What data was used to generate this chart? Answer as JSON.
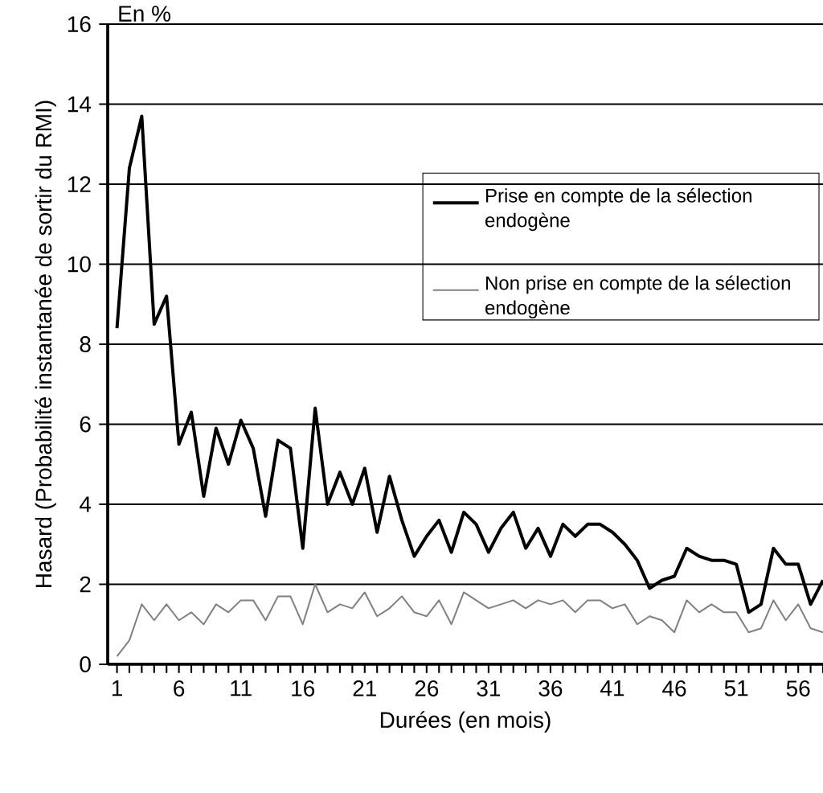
{
  "chart_data": {
    "type": "line",
    "xlabel": "Durées  (en mois)",
    "ylabel": "Hasard  (Probabilité  instantanée  de  sortir  du  RMI)",
    "annotations": [
      "En %"
    ],
    "categories": [
      "1",
      null,
      null,
      null,
      null,
      "6",
      null,
      null,
      null,
      null,
      "11",
      null,
      null,
      null,
      null,
      "16",
      null,
      null,
      null,
      null,
      "21",
      null,
      null,
      null,
      null,
      "26",
      null,
      null,
      null,
      null,
      "31",
      null,
      null,
      null,
      null,
      "36",
      null,
      null,
      null,
      null,
      "41",
      null,
      null,
      null,
      null,
      "46",
      null,
      null,
      null,
      null,
      "51",
      null,
      null,
      null,
      null,
      "56",
      null,
      null
    ],
    "series": [
      {
        "name": "Prise en compte de la sélection endogène",
        "color": "#000000",
        "values": [
          8.4,
          12.4,
          13.7,
          8.5,
          9.2,
          5.5,
          6.3,
          4.2,
          5.9,
          5.0,
          6.1,
          5.4,
          3.7,
          5.6,
          5.4,
          2.9,
          6.4,
          4.0,
          4.8,
          4.0,
          4.9,
          3.3,
          4.7,
          3.6,
          2.7,
          3.2,
          3.6,
          2.8,
          3.8,
          3.5,
          2.8,
          3.4,
          3.8,
          2.9,
          3.4,
          2.7,
          3.5,
          3.2,
          3.5,
          3.5,
          3.3,
          3.0,
          2.6,
          1.9,
          2.1,
          2.2,
          2.9,
          2.7,
          2.6,
          2.6,
          2.5,
          1.3,
          1.5,
          2.9,
          2.5,
          2.5,
          1.5,
          2.1
        ]
      },
      {
        "name": "Non prise en compte de la sélection endogène",
        "color": "#808080",
        "values": [
          0.2,
          0.6,
          1.5,
          1.1,
          1.5,
          1.1,
          1.3,
          1.0,
          1.5,
          1.3,
          1.6,
          1.6,
          1.1,
          1.7,
          1.7,
          1.0,
          2.0,
          1.3,
          1.5,
          1.4,
          1.8,
          1.2,
          1.4,
          1.7,
          1.3,
          1.2,
          1.6,
          1.0,
          1.8,
          1.6,
          1.4,
          1.5,
          1.6,
          1.4,
          1.6,
          1.5,
          1.6,
          1.3,
          1.6,
          1.6,
          1.4,
          1.5,
          1.0,
          1.2,
          1.1,
          0.8,
          1.6,
          1.3,
          1.5,
          1.3,
          1.3,
          0.8,
          0.9,
          1.6,
          1.1,
          1.5,
          0.9,
          0.8
        ]
      }
    ],
    "ylim": [
      0,
      16
    ],
    "yticks": [
      0,
      2,
      4,
      6,
      8,
      10,
      12,
      14,
      16
    ],
    "grid": "y",
    "legend": "top right",
    "marker": "none",
    "line_style": "solid"
  }
}
